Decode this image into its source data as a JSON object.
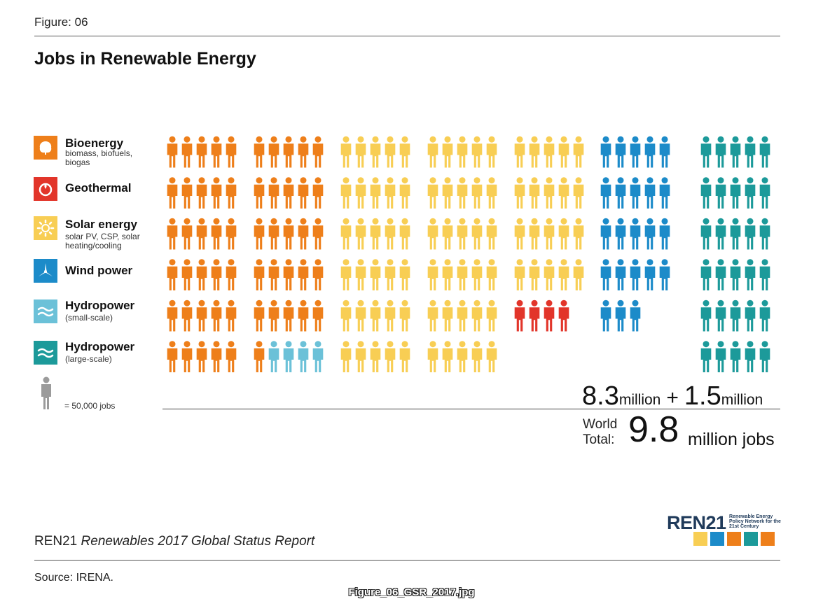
{
  "figure_label": "Figure: 06",
  "title": "Jobs in Renewable Energy",
  "legend": [
    {
      "key": "bioenergy",
      "name": "Bioenergy",
      "desc": "biomass, biofuels, biogas",
      "color": "#EE7F1A"
    },
    {
      "key": "geothermal",
      "name": "Geothermal",
      "desc": "",
      "color": "#E2352A"
    },
    {
      "key": "solar",
      "name": "Solar energy",
      "desc": "solar PV, CSP, solar heating/cooling",
      "color": "#F8CE54"
    },
    {
      "key": "wind",
      "name": "Wind power",
      "desc": "",
      "color": "#1C8BC9"
    },
    {
      "key": "hydro_small",
      "name": "Hydropower",
      "desc": "(small-scale)",
      "color": "#6BC1D8"
    },
    {
      "key": "hydro_large",
      "name": "Hydropower",
      "desc": "(large-scale)",
      "color": "#1C9A9A"
    }
  ],
  "unit_label": "= 50,000 jobs",
  "unit_color": "#9B9B9B",
  "chart_data": {
    "type": "pictogram",
    "title": "Jobs in Renewable Energy",
    "unit_jobs_per_icon": 50000,
    "series": [
      {
        "name": "Bioenergy",
        "key": "bioenergy",
        "icons": 56
      },
      {
        "name": "Hydropower (small-scale)",
        "key": "hydro_small",
        "icons": 4
      },
      {
        "name": "Solar energy",
        "key": "solar",
        "icons": 80
      },
      {
        "name": "Geothermal",
        "key": "geothermal",
        "icons": 4
      },
      {
        "name": "Wind power",
        "key": "wind",
        "icons": 23
      },
      {
        "name": "Hydropower (large-scale)",
        "key": "hydro_large",
        "icons": 30
      }
    ],
    "columns": [
      {
        "rows": [
          [
            "bioenergy",
            5
          ],
          [
            "bioenergy",
            5
          ],
          [
            "bioenergy",
            5
          ],
          [
            "bioenergy",
            5
          ],
          [
            "bioenergy",
            5
          ],
          [
            "bioenergy",
            5
          ]
        ]
      },
      {
        "rows": [
          [
            "bioenergy",
            5
          ],
          [
            "bioenergy",
            5
          ],
          [
            "bioenergy",
            5
          ],
          [
            "bioenergy",
            5
          ],
          [
            "bioenergy",
            5
          ],
          [
            "bioenergy",
            1,
            "hydro_small",
            4
          ]
        ]
      },
      {
        "rows": [
          [
            "solar",
            5
          ],
          [
            "solar",
            5
          ],
          [
            "solar",
            5
          ],
          [
            "solar",
            5
          ],
          [
            "solar",
            5
          ],
          [
            "solar",
            5
          ]
        ]
      },
      {
        "rows": [
          [
            "solar",
            5
          ],
          [
            "solar",
            5
          ],
          [
            "solar",
            5
          ],
          [
            "solar",
            5
          ],
          [
            "solar",
            5
          ],
          [
            "solar",
            5
          ]
        ]
      },
      {
        "rows": [
          [
            "solar",
            5
          ],
          [
            "solar",
            5
          ],
          [
            "solar",
            5
          ],
          [
            "solar",
            5
          ],
          [
            "geothermal",
            4
          ]
        ]
      },
      {
        "rows": [
          [
            "wind",
            5
          ],
          [
            "wind",
            5
          ],
          [
            "wind",
            5
          ],
          [
            "wind",
            5
          ],
          [
            "wind",
            3
          ]
        ]
      },
      {
        "rows": [
          [
            "hydro_large",
            5
          ],
          [
            "hydro_large",
            5
          ],
          [
            "hydro_large",
            5
          ],
          [
            "hydro_large",
            5
          ],
          [
            "hydro_large",
            5
          ],
          [
            "hydro_large",
            5
          ]
        ]
      }
    ]
  },
  "totals": {
    "part1_value": "8.3",
    "part1_unit": "million",
    "plus": "+",
    "part2_value": "1.5",
    "part2_unit": "million",
    "world_label_1": "World",
    "world_label_2": "Total:",
    "total_value": "9.8",
    "total_unit": "million jobs"
  },
  "logo": {
    "wordmark": "REN21",
    "tagline": "Renewable Energy Policy Network for the 21st Century",
    "tile_colors": [
      "#F8CE54",
      "#1C8BC9",
      "#EE7F1A",
      "#1C9A9A",
      "#EE7F1A"
    ]
  },
  "report": {
    "org": "REN21",
    "title": "Renewables 2017 Global Status Report"
  },
  "source": "Source: IRENA.",
  "filename": "Figure_06_GSR_2017.jpg"
}
